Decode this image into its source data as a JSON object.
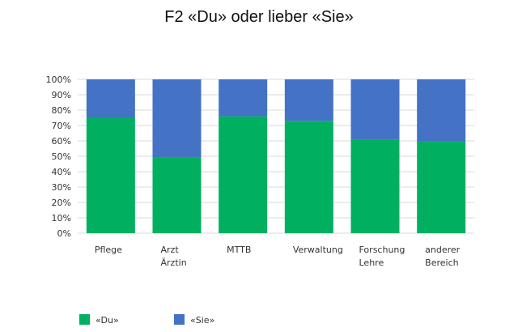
{
  "chart_data": {
    "type": "bar",
    "stacked": true,
    "title": "F2 «Du» oder lieber «Sie»",
    "categories": [
      [
        "Pflege"
      ],
      [
        "Arzt",
        "Ärztin"
      ],
      [
        "MTTB"
      ],
      [
        "Verwaltung"
      ],
      [
        "Forschung",
        "Lehre"
      ],
      [
        "anderer",
        "Bereich"
      ]
    ],
    "series": [
      {
        "name": "«Du»",
        "values": [
          75,
          49,
          76,
          73,
          61,
          60
        ]
      },
      {
        "name": "«Sie»",
        "values": [
          25,
          51,
          24,
          27,
          39,
          40
        ]
      }
    ],
    "colors": [
      "#00b060",
      "#4472c4"
    ],
    "ylim": [
      0,
      100
    ],
    "yticks": [
      0,
      10,
      20,
      30,
      40,
      50,
      60,
      70,
      80,
      90,
      100
    ],
    "ytick_suffix": "%",
    "grid": true,
    "legend_position": "bottom-left"
  }
}
